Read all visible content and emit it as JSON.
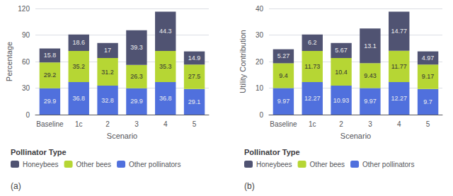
{
  "chart_data": [
    {
      "type": "bar",
      "stacked": true,
      "data_labels": true,
      "grid": true,
      "legend": "bottom",
      "xlabel": "Scenario",
      "ylabel": "Percentage",
      "legend_title": "Pollinator Type",
      "annotations": [
        "(a)"
      ],
      "categories": [
        "Baseline",
        "1c",
        "2",
        "3",
        "4",
        "5"
      ],
      "ylim": [
        0,
        120
      ],
      "yticks": [
        0,
        30,
        60,
        90,
        120
      ],
      "series": [
        {
          "name": "Other pollinators",
          "values": [
            29.9,
            36.8,
            32.8,
            29.9,
            36.8,
            29.1
          ]
        },
        {
          "name": "Other bees",
          "values": [
            29.2,
            35.2,
            31.2,
            26.3,
            35.3,
            27.5
          ]
        },
        {
          "name": "Honeybees",
          "values": [
            15.8,
            18.6,
            17.0,
            39.3,
            44.3,
            14.9
          ]
        }
      ]
    },
    {
      "type": "bar",
      "stacked": true,
      "data_labels": true,
      "grid": true,
      "legend": "bottom",
      "xlabel": "Scenario",
      "ylabel": "Utility Contribution",
      "legend_title": "Pollinator Type",
      "annotations": [
        "(b)"
      ],
      "categories": [
        "Baseline",
        "1c",
        "2",
        "3",
        "4",
        "5"
      ],
      "ylim": [
        0,
        40
      ],
      "yticks": [
        0,
        10,
        20,
        30,
        40
      ],
      "series": [
        {
          "name": "Other pollinators",
          "values": [
            9.97,
            12.27,
            10.93,
            9.97,
            12.27,
            9.7
          ]
        },
        {
          "name": "Other bees",
          "values": [
            9.4,
            11.73,
            10.4,
            9.43,
            11.77,
            9.17
          ]
        },
        {
          "name": "Honeybees",
          "values": [
            5.27,
            6.2,
            5.67,
            13.1,
            14.77,
            4.97
          ]
        }
      ]
    }
  ]
}
